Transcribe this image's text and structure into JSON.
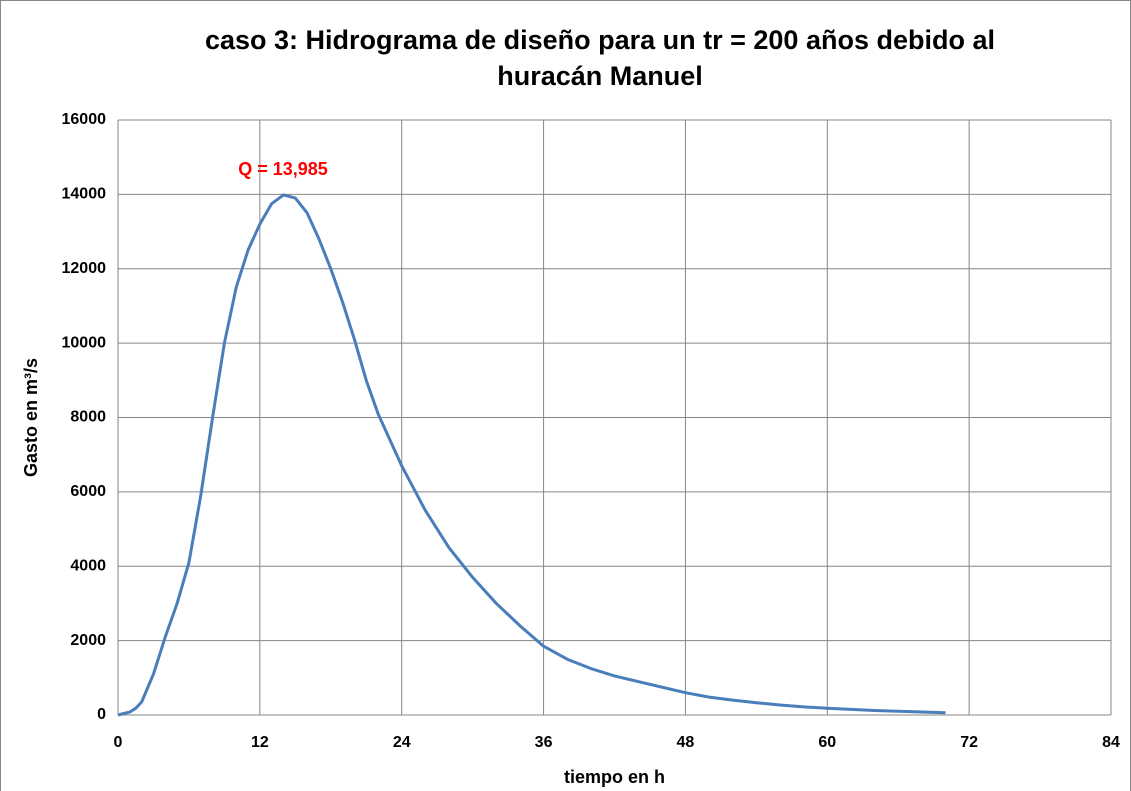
{
  "chart_data": {
    "type": "line",
    "title": "caso 3: Hidrograma de diseño para un tr = 200 años debido al huracán Manuel",
    "xlabel": "tiempo en h",
    "ylabel": "Gasto en m³/s",
    "annotation": "Q = 13,985",
    "annotation_color": "#ff0000",
    "xlim": [
      0,
      84
    ],
    "ylim": [
      0,
      16000
    ],
    "xticks": [
      0,
      12,
      24,
      36,
      48,
      60,
      72,
      84
    ],
    "yticks": [
      0,
      2000,
      4000,
      6000,
      8000,
      10000,
      12000,
      14000,
      16000
    ],
    "grid": true,
    "series": [
      {
        "color": "#4a7ebb",
        "x": [
          0,
          1,
          1.5,
          2,
          3,
          4,
          5,
          6,
          7,
          8,
          9,
          10,
          11,
          12,
          13,
          14,
          15,
          16,
          17,
          18,
          19,
          20,
          21,
          22,
          24,
          26,
          28,
          30,
          32,
          34,
          36,
          38,
          40,
          42,
          44,
          46,
          48,
          50,
          52,
          54,
          56,
          58,
          60,
          62,
          64,
          66,
          68,
          70
        ],
        "values": [
          0,
          80,
          180,
          350,
          1100,
          2100,
          3000,
          4100,
          5900,
          8000,
          10000,
          11500,
          12500,
          13200,
          13750,
          13985,
          13900,
          13500,
          12800,
          12000,
          11100,
          10100,
          9000,
          8100,
          6700,
          5500,
          4500,
          3700,
          3000,
          2400,
          1850,
          1500,
          1250,
          1050,
          900,
          750,
          600,
          480,
          400,
          330,
          270,
          220,
          180,
          150,
          120,
          100,
          80,
          60
        ]
      }
    ]
  }
}
